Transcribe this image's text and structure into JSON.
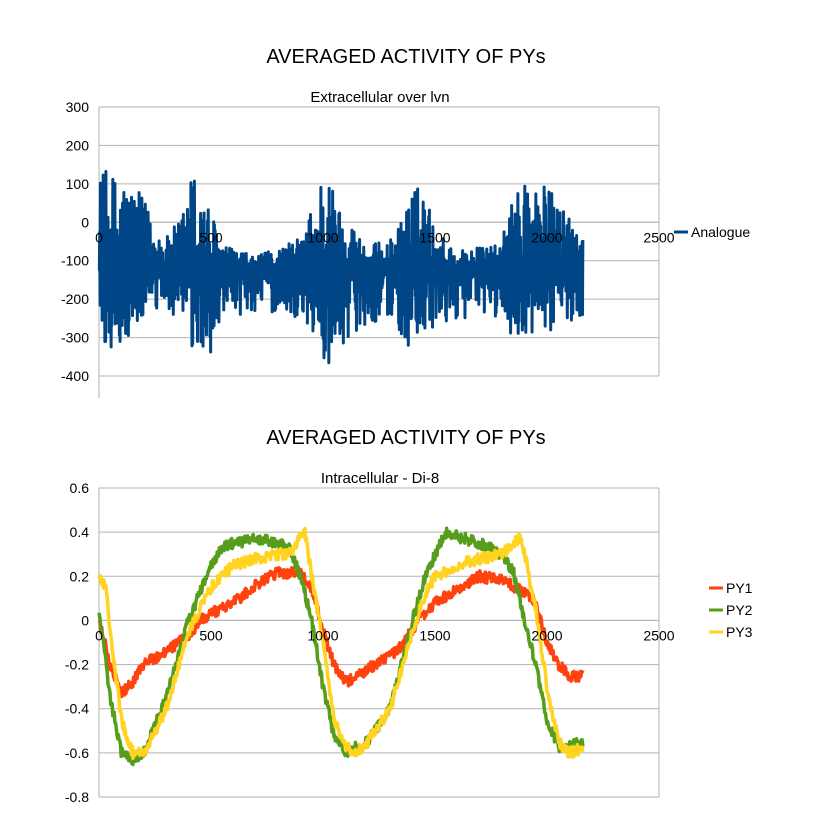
{
  "chart_data": [
    {
      "type": "line",
      "title": "AVERAGED ACTIVITY OF PYs",
      "subtitle": "Extracellular over lvn",
      "xlabel": "",
      "ylabel": "",
      "xlim": [
        0,
        2500
      ],
      "ylim": [
        -400,
        300
      ],
      "x_ticks": [
        0,
        500,
        1000,
        1500,
        2000,
        2500
      ],
      "y_ticks": [
        300,
        200,
        100,
        0,
        -100,
        -200,
        -300,
        -400
      ],
      "grid": "horizontal",
      "legend_position": "right",
      "series": [
        {
          "name": "Analogue",
          "color": "#004586",
          "baseline": -125,
          "x_range": [
            0,
            2160
          ],
          "envelope": {
            "x": [
              0,
              60,
              120,
              200,
              300,
              360,
              420,
              480,
              560,
              700,
              900,
              960,
              1010,
              1060,
              1200,
              1320,
              1400,
              1460,
              1500,
              1600,
              1780,
              1900,
              1960,
              2010,
              2060,
              2160
            ],
            "max": [
              140,
              130,
              125,
              60,
              -40,
              10,
              145,
              60,
              -60,
              -90,
              -40,
              60,
              170,
              60,
              -60,
              -40,
              100,
              80,
              -20,
              -70,
              -60,
              145,
              110,
              90,
              60,
              0
            ],
            "min": [
              -310,
              -340,
              -330,
              -250,
              -230,
              -260,
              -370,
              -360,
              -270,
              -230,
              -250,
              -300,
              -390,
              -330,
              -260,
              -260,
              -360,
              -330,
              -280,
              -250,
              -250,
              -330,
              -300,
              -290,
              -270,
              -240
            ]
          }
        }
      ]
    },
    {
      "type": "line",
      "title": "AVERAGED ACTIVITY OF PYs",
      "subtitle": "Intracellular - Di-8",
      "xlabel": "",
      "ylabel": "",
      "xlim": [
        0,
        2500
      ],
      "ylim": [
        -0.8,
        0.6
      ],
      "x_ticks": [
        0,
        500,
        1000,
        1500,
        2000,
        2500
      ],
      "y_ticks": [
        0.6,
        0.4,
        0.2,
        0,
        -0.2,
        -0.4,
        -0.6,
        -0.8
      ],
      "y_tick_labels": [
        "0.6",
        "0.4",
        "0.2",
        "0",
        "-0.2",
        "-0.4",
        "-0.6",
        "-0.8"
      ],
      "grid": "horizontal",
      "legend_position": "right",
      "series": [
        {
          "name": "PY1",
          "color": "#ff420e",
          "x": [
            0,
            50,
            100,
            150,
            200,
            300,
            400,
            450,
            500,
            600,
            700,
            800,
            900,
            950,
            1000,
            1050,
            1100,
            1200,
            1300,
            1350,
            1400,
            1450,
            1500,
            1600,
            1700,
            1800,
            1900,
            1950,
            2000,
            2050,
            2100,
            2160
          ],
          "y": [
            0.0,
            -0.2,
            -0.33,
            -0.28,
            -0.2,
            -0.14,
            -0.07,
            0.0,
            0.03,
            0.08,
            0.16,
            0.22,
            0.21,
            0.15,
            -0.05,
            -0.2,
            -0.28,
            -0.22,
            -0.16,
            -0.12,
            -0.04,
            0.03,
            0.08,
            0.14,
            0.2,
            0.18,
            0.13,
            0.08,
            -0.1,
            -0.2,
            -0.25,
            -0.25
          ]
        },
        {
          "name": "PY2",
          "color": "#579d1c",
          "x": [
            0,
            20,
            50,
            100,
            150,
            200,
            300,
            400,
            500,
            550,
            600,
            700,
            800,
            850,
            900,
            950,
            1000,
            1050,
            1100,
            1200,
            1300,
            1400,
            1450,
            1500,
            1550,
            1600,
            1700,
            1800,
            1850,
            1900,
            1950,
            2000,
            2050,
            2100,
            2160
          ],
          "y": [
            0.03,
            -0.1,
            -0.35,
            -0.6,
            -0.63,
            -0.6,
            -0.35,
            0.0,
            0.25,
            0.33,
            0.35,
            0.37,
            0.35,
            0.33,
            0.2,
            0.0,
            -0.3,
            -0.53,
            -0.6,
            -0.55,
            -0.4,
            0.0,
            0.18,
            0.3,
            0.4,
            0.38,
            0.35,
            0.3,
            0.22,
            0.0,
            -0.2,
            -0.45,
            -0.57,
            -0.57,
            -0.55
          ]
        },
        {
          "name": "PY3",
          "color": "#ffd320",
          "x": [
            0,
            30,
            50,
            100,
            150,
            200,
            300,
            400,
            500,
            600,
            700,
            800,
            850,
            900,
            920,
            950,
            1000,
            1050,
            1100,
            1150,
            1200,
            1300,
            1400,
            1450,
            1500,
            1600,
            1700,
            1800,
            1850,
            1880,
            1900,
            1950,
            2000,
            2050,
            2100,
            2160
          ],
          "y": [
            0.2,
            0.15,
            -0.05,
            -0.45,
            -0.6,
            -0.6,
            -0.4,
            -0.05,
            0.15,
            0.25,
            0.28,
            0.3,
            0.3,
            0.38,
            0.4,
            0.2,
            -0.1,
            -0.45,
            -0.57,
            -0.6,
            -0.55,
            -0.4,
            -0.05,
            0.1,
            0.2,
            0.25,
            0.28,
            0.3,
            0.35,
            0.38,
            0.3,
            0.05,
            -0.3,
            -0.55,
            -0.6,
            -0.58
          ]
        }
      ]
    }
  ]
}
